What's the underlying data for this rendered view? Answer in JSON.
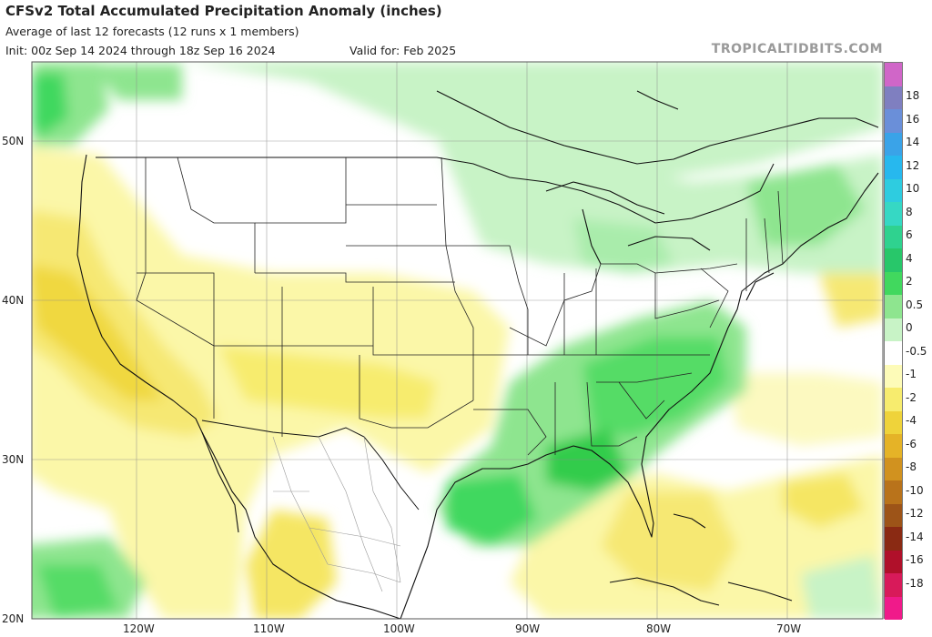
{
  "header": {
    "title": "CFSv2 Total Accumulated Precipitation Anomaly (inches)",
    "subtitle": "Average of last 12 forecasts (12 runs x 1 members)",
    "init": "Init: 00z Sep 14 2024 through 18z Sep 16 2024",
    "valid": "Valid for: Feb 2025",
    "brand": "TROPICALTIDBITS.COM"
  },
  "colorbar": {
    "levels": [
      {
        "label": "18",
        "color": "#7f7fc0"
      },
      {
        "label": "16",
        "color": "#6a8fd9"
      },
      {
        "label": "14",
        "color": "#3aa3e8"
      },
      {
        "label": "12",
        "color": "#27b8ee"
      },
      {
        "label": "10",
        "color": "#2ecce0"
      },
      {
        "label": "8",
        "color": "#36d8c4"
      },
      {
        "label": "6",
        "color": "#2fd28f"
      },
      {
        "label": "4",
        "color": "#28c76a"
      },
      {
        "label": "2",
        "color": "#41d85e"
      },
      {
        "label": "0.5",
        "color": "#8ee58f"
      },
      {
        "label": "0",
        "color": "#c8f3c6"
      },
      {
        "label": "-0.5",
        "color": "#ffffff"
      },
      {
        "label": "-1",
        "color": "#fdfbb8"
      },
      {
        "label": "-2",
        "color": "#f7ec6e"
      },
      {
        "label": "-4",
        "color": "#efd33a"
      },
      {
        "label": "-6",
        "color": "#e5b327"
      },
      {
        "label": "-8",
        "color": "#d1921f"
      },
      {
        "label": "-10",
        "color": "#b9731b"
      },
      {
        "label": "-12",
        "color": "#9d5418"
      },
      {
        "label": "-14",
        "color": "#8a2a13"
      },
      {
        "label": "-16",
        "color": "#b0102a"
      },
      {
        "label": "-18",
        "color": "#d81a5a"
      }
    ],
    "top_color": "#d066c8",
    "bottom_color": "#f01a8a"
  },
  "axes": {
    "lat_labels": [
      "50N",
      "40N",
      "30N",
      "20N"
    ],
    "lon_labels": [
      "120W",
      "110W",
      "100W",
      "90W",
      "80W",
      "70W"
    ]
  }
}
